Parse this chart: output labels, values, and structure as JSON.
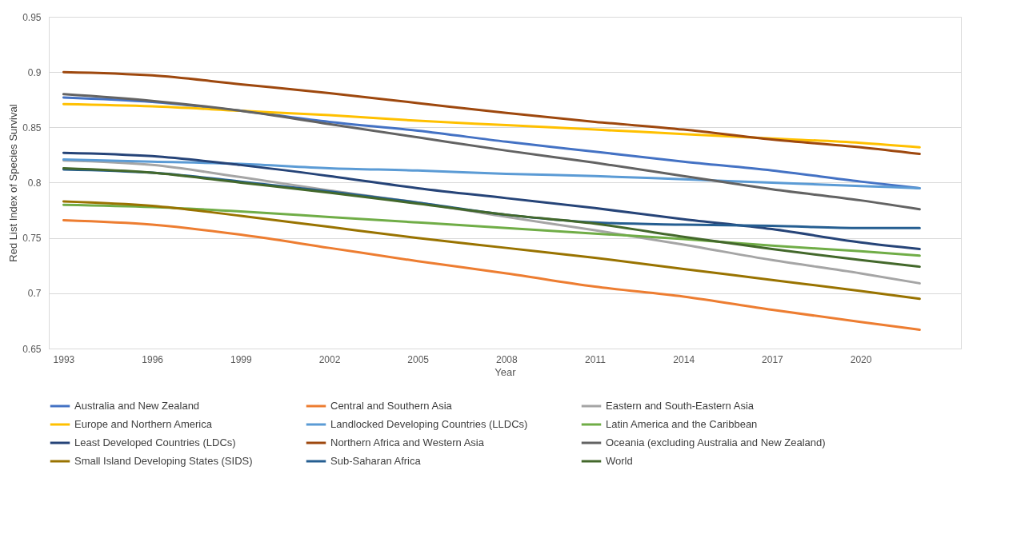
{
  "chart_data": {
    "type": "line",
    "xlabel": "Year",
    "ylabel": "Red List Index of Species Survival",
    "x": [
      1993,
      1996,
      1999,
      2002,
      2005,
      2008,
      2011,
      2014,
      2017,
      2020,
      2022
    ],
    "xlim": [
      1992.5,
      2023.4
    ],
    "xticks": [
      1993,
      1996,
      1999,
      2002,
      2005,
      2008,
      2011,
      2014,
      2017,
      2020
    ],
    "ylim": [
      0.65,
      0.95
    ],
    "yticks": [
      0.65,
      0.7,
      0.75,
      0.8,
      0.85,
      0.9,
      0.95
    ],
    "grid": "y",
    "legend": "bottom",
    "marker": "none",
    "line_style": "solid",
    "series": [
      {
        "name": "Australia and New Zealand",
        "color": "#4472c4",
        "values": [
          0.877,
          0.873,
          0.865,
          0.855,
          0.847,
          0.837,
          0.828,
          0.819,
          0.811,
          0.801,
          0.795
        ]
      },
      {
        "name": "Central and Southern Asia",
        "color": "#ed7d31",
        "values": [
          0.766,
          0.762,
          0.753,
          0.741,
          0.729,
          0.718,
          0.706,
          0.697,
          0.685,
          0.674,
          0.667
        ]
      },
      {
        "name": "Eastern and South-Eastern Asia",
        "color": "#a5a5a5",
        "values": [
          0.82,
          0.816,
          0.805,
          0.793,
          0.782,
          0.769,
          0.757,
          0.744,
          0.73,
          0.718,
          0.709
        ]
      },
      {
        "name": "Europe and Northern America",
        "color": "#ffc000",
        "values": [
          0.871,
          0.869,
          0.865,
          0.861,
          0.856,
          0.852,
          0.848,
          0.844,
          0.84,
          0.836,
          0.832
        ]
      },
      {
        "name": "Landlocked Developing Countries (LLDCs)",
        "color": "#5b9bd5",
        "values": [
          0.821,
          0.819,
          0.817,
          0.813,
          0.811,
          0.808,
          0.806,
          0.803,
          0.8,
          0.797,
          0.795
        ]
      },
      {
        "name": "Latin America and the Caribbean",
        "color": "#70ad47",
        "values": [
          0.78,
          0.778,
          0.774,
          0.769,
          0.764,
          0.759,
          0.754,
          0.749,
          0.743,
          0.738,
          0.734
        ]
      },
      {
        "name": "Least Developed Countries (LDCs)",
        "color": "#264478",
        "values": [
          0.827,
          0.824,
          0.816,
          0.806,
          0.795,
          0.786,
          0.777,
          0.767,
          0.758,
          0.746,
          0.74
        ]
      },
      {
        "name": "Northern Africa and Western Asia",
        "color": "#9e480e",
        "values": [
          0.9,
          0.897,
          0.889,
          0.881,
          0.872,
          0.863,
          0.855,
          0.848,
          0.839,
          0.832,
          0.826
        ]
      },
      {
        "name": "Oceania (excluding Australia and New Zealand)",
        "color": "#636363",
        "values": [
          0.88,
          0.874,
          0.865,
          0.853,
          0.841,
          0.829,
          0.818,
          0.806,
          0.794,
          0.784,
          0.776
        ]
      },
      {
        "name": "Small Island Developing States (SIDS)",
        "color": "#997300",
        "values": [
          0.783,
          0.779,
          0.77,
          0.76,
          0.75,
          0.741,
          0.732,
          0.722,
          0.712,
          0.702,
          0.695
        ]
      },
      {
        "name": "Sub-Saharan Africa",
        "color": "#255e91",
        "values": [
          0.812,
          0.809,
          0.801,
          0.792,
          0.782,
          0.771,
          0.764,
          0.762,
          0.761,
          0.759,
          0.759
        ]
      },
      {
        "name": "World",
        "color": "#43682b",
        "values": [
          0.813,
          0.809,
          0.8,
          0.791,
          0.781,
          0.771,
          0.763,
          0.751,
          0.74,
          0.73,
          0.724
        ]
      }
    ]
  }
}
